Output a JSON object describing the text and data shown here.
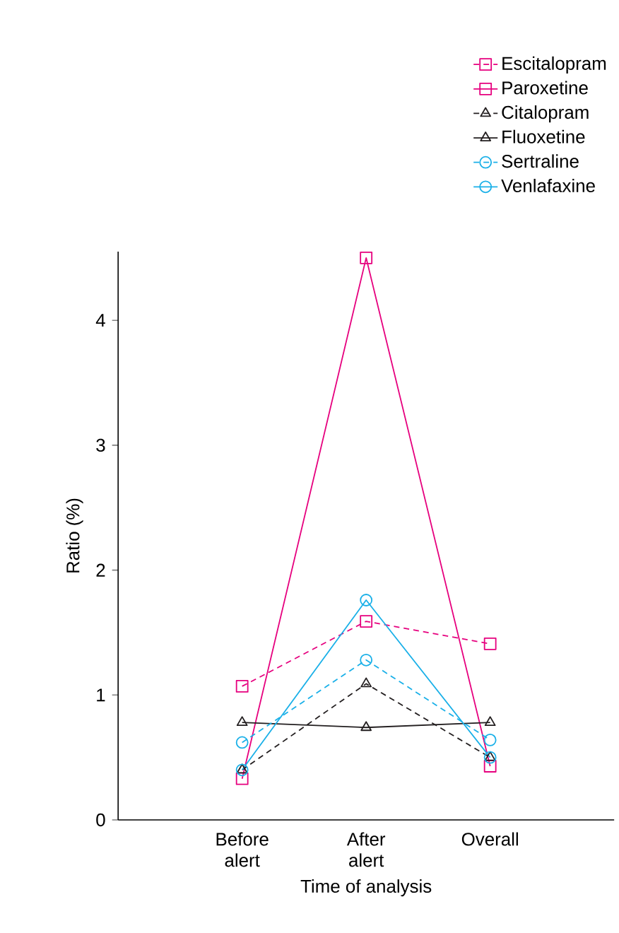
{
  "chart_data": {
    "type": "line",
    "xlabel": "Time of analysis",
    "ylabel": "Ratio (%)",
    "categories": [
      "Before alert",
      "After alert",
      "Overall"
    ],
    "ylim": [
      0,
      4.55
    ],
    "yticks": [
      0,
      1,
      2,
      3,
      4
    ],
    "grid": false,
    "legend": "top right",
    "series": [
      {
        "name": "Escitalopram",
        "color": "#e6007e",
        "marker": "square",
        "line_style": "dashed",
        "values": [
          1.07,
          1.59,
          1.41
        ]
      },
      {
        "name": "Paroxetine",
        "color": "#e6007e",
        "marker": "square",
        "line_style": "solid",
        "values": [
          0.33,
          4.5,
          0.43
        ]
      },
      {
        "name": "Citalopram",
        "color": "#231f20",
        "marker": "triangle",
        "line_style": "dashed",
        "values": [
          0.4,
          1.09,
          0.5
        ]
      },
      {
        "name": "Fluoxetine",
        "color": "#231f20",
        "marker": "triangle",
        "line_style": "solid",
        "values": [
          0.78,
          0.74,
          0.78
        ]
      },
      {
        "name": "Sertraline",
        "color": "#1ab0e8",
        "marker": "circle",
        "line_style": "dashed",
        "values": [
          0.62,
          1.28,
          0.64
        ]
      },
      {
        "name": "Venlafaxine",
        "color": "#1ab0e8",
        "marker": "circle",
        "line_style": "solid",
        "values": [
          0.4,
          1.76,
          0.5
        ]
      }
    ]
  }
}
